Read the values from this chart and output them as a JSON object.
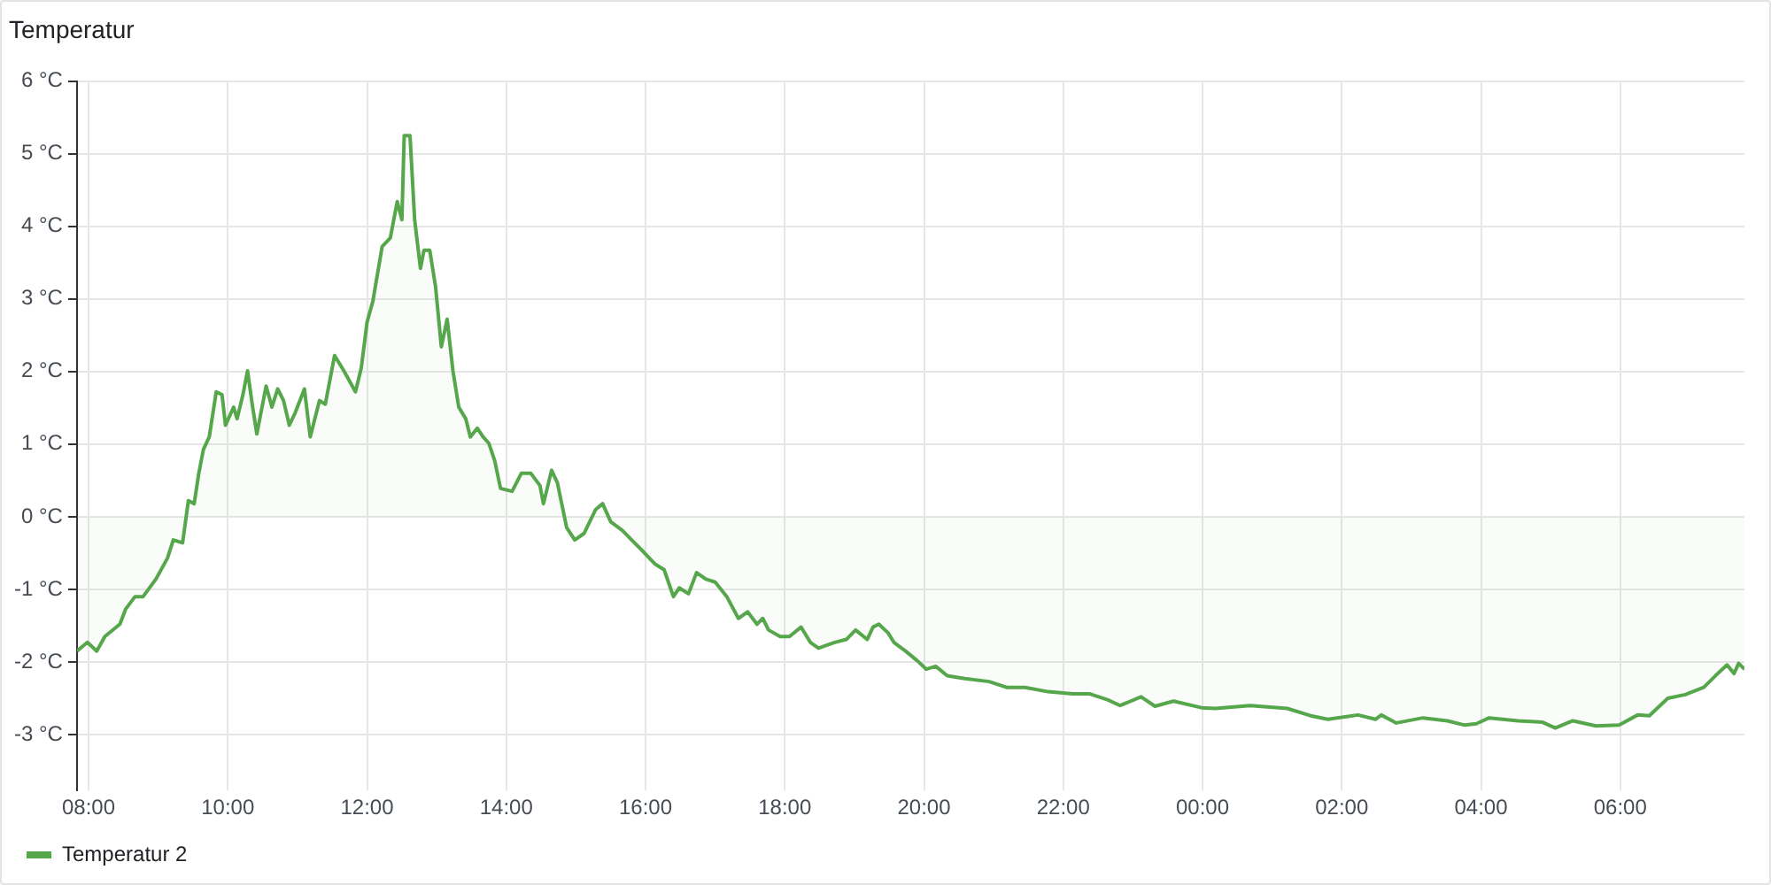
{
  "chart_data": {
    "type": "area",
    "title": "Temperatur",
    "x": [
      "--01-01T07:50",
      "--01-01T07:59",
      "--01-01T08:07",
      "--01-01T08:14",
      "--01-01T08:27",
      "--01-01T08:32",
      "--01-01T08:40",
      "--01-01T08:47",
      "--01-01T08:58",
      "--01-01T09:08",
      "--01-01T09:13",
      "--01-01T09:21",
      "--01-01T09:26",
      "--01-01T09:31",
      "--01-01T09:35",
      "--01-01T09:39",
      "--01-01T09:44",
      "--01-01T09:50",
      "--01-01T09:55",
      "--01-01T09:58",
      "--01-01T10:05",
      "--01-01T10:08",
      "--01-01T10:13",
      "--01-01T10:17",
      "--01-01T10:21",
      "--01-01T10:25",
      "--01-01T10:33",
      "--01-01T10:38",
      "--01-01T10:43",
      "--01-01T10:48",
      "--01-01T10:53",
      "--01-01T10:58",
      "--01-01T11:06",
      "--01-01T11:11",
      "--01-01T11:19",
      "--01-01T11:24",
      "--01-01T11:32",
      "--01-01T11:40",
      "--01-01T11:50",
      "--01-01T11:55",
      "--01-01T12:00",
      "--01-01T12:05",
      "--01-01T12:13",
      "--01-01T12:20",
      "--01-01T12:26",
      "--01-01T12:30",
      "--01-01T12:32",
      "--01-01T12:37",
      "--01-01T12:41",
      "--01-01T12:46",
      "--01-01T12:49",
      "--01-01T12:54",
      "--01-01T12:59",
      "--01-01T13:04",
      "--01-01T13:09",
      "--01-01T13:14",
      "--01-01T13:19",
      "--01-01T13:25",
      "--01-01T13:29",
      "--01-01T13:35",
      "--01-01T13:40",
      "--01-01T13:45",
      "--01-01T13:50",
      "--01-01T13:55",
      "--01-01T14:05",
      "--01-01T14:13",
      "--01-01T14:21",
      "--01-01T14:29",
      "--01-01T14:32",
      "--01-01T14:39",
      "--01-01T14:44",
      "--01-01T14:52",
      "--01-01T14:59",
      "--01-01T15:07",
      "--01-01T15:17",
      "--01-01T15:23",
      "--01-01T15:30",
      "--01-01T15:40",
      "--01-01T15:48",
      "--01-01T15:58",
      "--01-01T16:08",
      "--01-01T16:16",
      "--01-01T16:24",
      "--01-01T16:29",
      "--01-01T16:37",
      "--01-01T16:44",
      "--01-01T16:52",
      "--01-01T17:00",
      "--01-01T17:10",
      "--01-01T17:20",
      "--01-01T17:28",
      "--01-01T17:36",
      "--01-01T17:41",
      "--01-01T17:46",
      "--01-01T17:56",
      "--01-01T18:04",
      "--01-01T18:14",
      "--01-01T18:22",
      "--01-01T18:29",
      "--01-01T18:43",
      "--01-01T18:53",
      "--01-01T19:01",
      "--01-01T19:11",
      "--01-01T19:16",
      "--01-01T19:21",
      "--01-01T19:29",
      "--01-01T19:34",
      "--01-01T19:44",
      "--01-01T19:54",
      "--01-01T20:02",
      "--01-01T20:10",
      "--01-01T20:20",
      "--01-01T20:35",
      "--01-01T20:56",
      "--01-01T21:11",
      "--01-01T21:27",
      "--01-01T21:47",
      "--01-01T22:08",
      "--01-01T22:23",
      "--01-01T22:38",
      "--01-01T22:49",
      "--01-01T23:07",
      "--01-01T23:19",
      "--01-01T23:35",
      "--01-01T23:59",
      "--01-02T00:11",
      "--01-02T00:41",
      "--01-02T01:13",
      "--01-02T01:33",
      "--01-02T01:48",
      "--01-02T02:14",
      "--01-02T02:29",
      "--01-02T02:34",
      "--01-02T02:47",
      "--01-02T03:10",
      "--01-02T03:31",
      "--01-02T03:46",
      "--01-02T03:56",
      "--01-02T04:07",
      "--01-02T04:32",
      "--01-02T04:53",
      "--01-02T05:04",
      "--01-02T05:19",
      "--01-02T05:39",
      "--01-02T05:59",
      "--01-02T06:15",
      "--01-02T06:25",
      "--01-02T06:41",
      "--01-02T06:56",
      "--01-02T07:12",
      "--01-02T07:22",
      "--01-02T07:32",
      "--01-02T07:38",
      "--01-02T07:42",
      "--01-02T07:47"
    ],
    "series": [
      {
        "name": "Temperatur 2",
        "color": "#56a64b",
        "values": [
          -1.85,
          -1.73,
          -1.85,
          -1.65,
          -1.48,
          -1.27,
          -1.1,
          -1.1,
          -0.86,
          -0.57,
          -0.32,
          -0.36,
          0.22,
          0.18,
          0.6,
          0.93,
          1.1,
          1.72,
          1.68,
          1.26,
          1.51,
          1.35,
          1.68,
          2.01,
          1.55,
          1.14,
          1.8,
          1.51,
          1.76,
          1.6,
          1.26,
          1.43,
          1.76,
          1.1,
          1.6,
          1.55,
          2.22,
          2.01,
          1.72,
          2.05,
          2.68,
          2.97,
          3.72,
          3.84,
          4.34,
          4.09,
          5.25,
          5.25,
          4.09,
          3.42,
          3.67,
          3.67,
          3.17,
          2.34,
          2.72,
          2.01,
          1.51,
          1.35,
          1.1,
          1.22,
          1.1,
          1.01,
          0.77,
          0.39,
          0.35,
          0.6,
          0.6,
          0.43,
          0.18,
          0.64,
          0.47,
          -0.15,
          -0.32,
          -0.23,
          0.1,
          0.18,
          -0.07,
          -0.19,
          -0.32,
          -0.48,
          -0.65,
          -0.73,
          -1.1,
          -0.98,
          -1.06,
          -0.77,
          -0.86,
          -0.9,
          -1.1,
          -1.4,
          -1.31,
          -1.48,
          -1.4,
          -1.56,
          -1.65,
          -1.65,
          -1.52,
          -1.73,
          -1.81,
          -1.73,
          -1.69,
          -1.56,
          -1.69,
          -1.52,
          -1.48,
          -1.6,
          -1.73,
          -1.85,
          -1.98,
          -2.1,
          -2.06,
          -2.19,
          -2.23,
          -2.27,
          -2.35,
          -2.35,
          -2.41,
          -2.44,
          -2.44,
          -2.52,
          -2.6,
          -2.48,
          -2.61,
          -2.54,
          -2.63,
          -2.64,
          -2.6,
          -2.64,
          -2.74,
          -2.79,
          -2.73,
          -2.79,
          -2.73,
          -2.84,
          -2.77,
          -2.81,
          -2.87,
          -2.85,
          -2.77,
          -2.81,
          -2.83,
          -2.91,
          -2.81,
          -2.88,
          -2.87,
          -2.73,
          -2.74,
          -2.5,
          -2.45,
          -2.35,
          -2.19,
          -2.04,
          -2.16,
          -2.02,
          -2.1
        ]
      }
    ],
    "xlim": [
      "--01-01T07:50",
      "--01-02T07:47"
    ],
    "xticks": [
      {
        "value": "--01-01T08:00",
        "label": "08:00"
      },
      {
        "value": "--01-01T10:00",
        "label": "10:00"
      },
      {
        "value": "--01-01T12:00",
        "label": "12:00"
      },
      {
        "value": "--01-01T14:00",
        "label": "14:00"
      },
      {
        "value": "--01-01T16:00",
        "label": "16:00"
      },
      {
        "value": "--01-01T18:00",
        "label": "18:00"
      },
      {
        "value": "--01-01T20:00",
        "label": "20:00"
      },
      {
        "value": "--01-01T22:00",
        "label": "22:00"
      },
      {
        "value": "--01-02T00:00",
        "label": "00:00"
      },
      {
        "value": "--01-02T02:00",
        "label": "02:00"
      },
      {
        "value": "--01-02T04:00",
        "label": "04:00"
      },
      {
        "value": "--01-02T06:00",
        "label": "06:00"
      }
    ],
    "ylim": [
      -3.77,
      6
    ],
    "yticks": [
      {
        "value": -3,
        "label": "-3 °C"
      },
      {
        "value": -2,
        "label": "-2 °C"
      },
      {
        "value": -1,
        "label": "-1 °C"
      },
      {
        "value": 0,
        "label": "0 °C"
      },
      {
        "value": 1,
        "label": "1 °C"
      },
      {
        "value": 2,
        "label": "2 °C"
      },
      {
        "value": 3,
        "label": "3 °C"
      },
      {
        "value": 4,
        "label": "4 °C"
      },
      {
        "value": 5,
        "label": "5 °C"
      },
      {
        "value": 6,
        "label": "6 °C"
      }
    ],
    "grid": true,
    "legend": "bottom left",
    "marker": "none",
    "line_style": "solid"
  }
}
